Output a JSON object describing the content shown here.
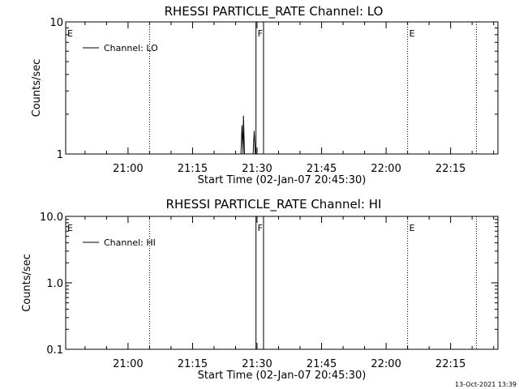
{
  "footer": {
    "timestamp": "13-Oct-2021 13:39"
  },
  "chart_data": [
    {
      "type": "line",
      "title": "RHESSI PARTICLE_RATE Channel: LO",
      "xlabel": "Start Time (02-Jan-07 20:45:30)",
      "ylabel": "Counts/sec",
      "y_scale": "log",
      "ylim": [
        1,
        10
      ],
      "y_ticks": [
        "1",
        "10"
      ],
      "x_ticks": [
        "21:00",
        "21:15",
        "21:30",
        "21:45",
        "22:00",
        "22:15"
      ],
      "xlim": [
        "20:45:30",
        "22:26"
      ],
      "legend": {
        "label": "Channel: LO",
        "placement": "top-left"
      },
      "series": [
        {
          "name": "Channel: LO",
          "points": [
            {
              "x": "21:26:15",
              "y": 1.0
            },
            {
              "x": "21:26:30",
              "y": 1.65
            },
            {
              "x": "21:26:45",
              "y": 1.0
            },
            {
              "x": "21:26:50",
              "y": 1.95
            },
            {
              "x": "21:27:05",
              "y": 1.0
            },
            {
              "x": "21:29:05",
              "y": 1.0
            },
            {
              "x": "21:29:20",
              "y": 1.5
            },
            {
              "x": "21:29:35",
              "y": 1.0
            }
          ]
        }
      ],
      "markers": [
        {
          "label": "E",
          "x": "20:45:30",
          "style": "dotted"
        },
        {
          "x": "21:05",
          "style": "dotted"
        },
        {
          "label": "F",
          "x": "21:29:45",
          "style": "solid"
        },
        {
          "x": "21:31:30",
          "style": "solid"
        },
        {
          "label": "E",
          "x": "22:05",
          "style": "dotted"
        },
        {
          "x": "22:21",
          "style": "dotted"
        }
      ]
    },
    {
      "type": "line",
      "title": "RHESSI PARTICLE_RATE Channel: HI",
      "xlabel": "Start Time (02-Jan-07 20:45:30)",
      "ylabel": "Counts/sec",
      "y_scale": "log",
      "ylim": [
        0.1,
        10
      ],
      "y_ticks": [
        "0.1",
        "1.0",
        "10.0"
      ],
      "x_ticks": [
        "21:00",
        "21:15",
        "21:30",
        "21:45",
        "22:00",
        "22:15"
      ],
      "xlim": [
        "20:45:30",
        "22:26"
      ],
      "legend": {
        "label": "Channel: HI",
        "placement": "top-left"
      },
      "series": [
        {
          "name": "Channel: HI",
          "points": []
        }
      ],
      "markers": [
        {
          "label": "E",
          "x": "20:45:30",
          "style": "dotted"
        },
        {
          "x": "21:05",
          "style": "dotted"
        },
        {
          "label": "F",
          "x": "21:29:45",
          "style": "solid"
        },
        {
          "x": "21:31:30",
          "style": "solid"
        },
        {
          "label": "E",
          "x": "22:05",
          "style": "dotted"
        },
        {
          "x": "22:21",
          "style": "dotted"
        }
      ]
    }
  ]
}
